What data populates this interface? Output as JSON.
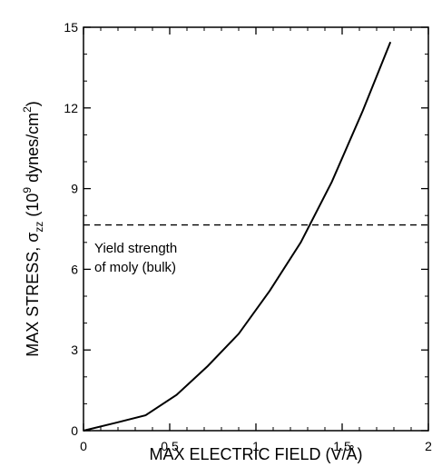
{
  "chart_data": {
    "type": "line",
    "title": "",
    "xlabel": "MAX ELECTRIC FIELD (V/Å)",
    "ylabel": {
      "prefix": "MAX STRESS,  σ",
      "sub": "zz",
      "mid": "  (10",
      "sup1": "9",
      "mid2": " dynes/cm",
      "sup2": "2",
      "suffix": ")"
    },
    "xlim": [
      0,
      2
    ],
    "ylim": [
      0,
      15
    ],
    "xticks": [
      0,
      0.5,
      1,
      1.5,
      2
    ],
    "xtick_labels": [
      "0",
      "0.5",
      "1",
      "1.5",
      "2"
    ],
    "yticks": [
      0,
      3,
      6,
      9,
      12,
      15
    ],
    "ytick_labels": [
      "0",
      "3",
      "6",
      "9",
      "12",
      "15"
    ],
    "grid": false,
    "series": [
      {
        "x": [
          0,
          0.18,
          0.36,
          0.54,
          0.72,
          0.9,
          1.08,
          1.26,
          1.44,
          1.62,
          1.78
        ],
        "y": [
          0,
          0.28,
          0.57,
          1.33,
          2.4,
          3.6,
          5.2,
          7.0,
          9.25,
          11.9,
          14.45
        ]
      }
    ],
    "reference_line": {
      "y": 7.65,
      "style": "dashed"
    },
    "annotation": {
      "lines": [
        "Yield strength",
        "of moly (bulk)"
      ]
    }
  }
}
